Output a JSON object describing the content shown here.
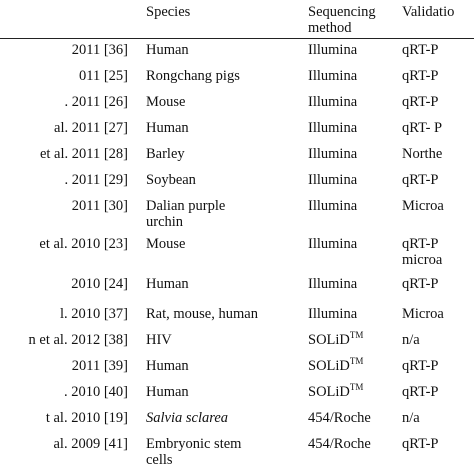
{
  "header": {
    "species": "Species",
    "method_line1": "Sequencing",
    "method_line2": "method",
    "validation": "Validatio"
  },
  "rows": [
    {
      "ref": "2011  [36]",
      "species": "Human",
      "species2": "",
      "method": "Illumina",
      "method_sup": "",
      "validation": "qRT-P",
      "validation2": ""
    },
    {
      "ref": "011  [25]",
      "species": "Rongchang pigs",
      "species2": "",
      "method": "Illumina",
      "method_sup": "",
      "validation": "qRT-P",
      "validation2": ""
    },
    {
      "ref": ". 2011  [26]",
      "species": "Mouse",
      "species2": "",
      "method": "Illumina",
      "method_sup": "",
      "validation": "qRT-P",
      "validation2": ""
    },
    {
      "ref": "al. 2011  [27]",
      "species": "Human",
      "species2": "",
      "method": "Illumina",
      "method_sup": "",
      "validation": "qRT-  P",
      "validation2": ""
    },
    {
      "ref": "et al. 2011  [28]",
      "species": "Barley",
      "species2": "",
      "method": "Illumina",
      "method_sup": "",
      "validation": "Northe",
      "validation2": ""
    },
    {
      "ref": ". 2011  [29]",
      "species": "Soybean",
      "species2": "",
      "method": "Illumina",
      "method_sup": "",
      "validation": "qRT-P",
      "validation2": ""
    },
    {
      "ref": "2011  [30]",
      "species": "Dalian purple",
      "species2": "urchin",
      "method": "Illumina",
      "method_sup": "",
      "validation": "Microa",
      "validation2": ""
    },
    {
      "ref": "et al. 2010  [23]",
      "species": "Mouse",
      "species2": "",
      "method": "Illumina",
      "method_sup": "",
      "validation": "qRT-P",
      "validation2": "microa"
    },
    {
      "ref": "2010  [24]",
      "species": "Human",
      "species2": "",
      "method": "Illumina",
      "method_sup": "",
      "validation": "qRT-P",
      "validation2": ""
    },
    {
      "ref": "l. 2010  [37]",
      "species": "Rat, mouse, human",
      "species2": "",
      "method": "Illumina",
      "method_sup": "",
      "validation": "Microa",
      "validation2": ""
    },
    {
      "ref": "n et al. 2012  [38]",
      "species": "HIV",
      "species2": "",
      "method": "SOLiD",
      "method_sup": "TM",
      "validation": "n/a",
      "validation2": ""
    },
    {
      "ref": "2011  [39]",
      "species": "Human",
      "species2": "",
      "method": "SOLiD",
      "method_sup": "TM",
      "validation": "qRT-P",
      "validation2": ""
    },
    {
      "ref": ". 2010  [40]",
      "species": "Human",
      "species2": "",
      "method": "SOLiD",
      "method_sup": "TM",
      "validation": "qRT-P",
      "validation2": ""
    },
    {
      "ref": "t al. 2010  [19]",
      "species": "Salvia sclarea",
      "species2": "",
      "method": "454/Roche",
      "method_sup": "",
      "validation": "n/a",
      "validation2": ""
    },
    {
      "ref": "al. 2009  [41]",
      "species": "Embryonic stem",
      "species2": "cells",
      "method": "454/Roche",
      "method_sup": "",
      "validation": "qRT-P",
      "validation2": ""
    }
  ]
}
